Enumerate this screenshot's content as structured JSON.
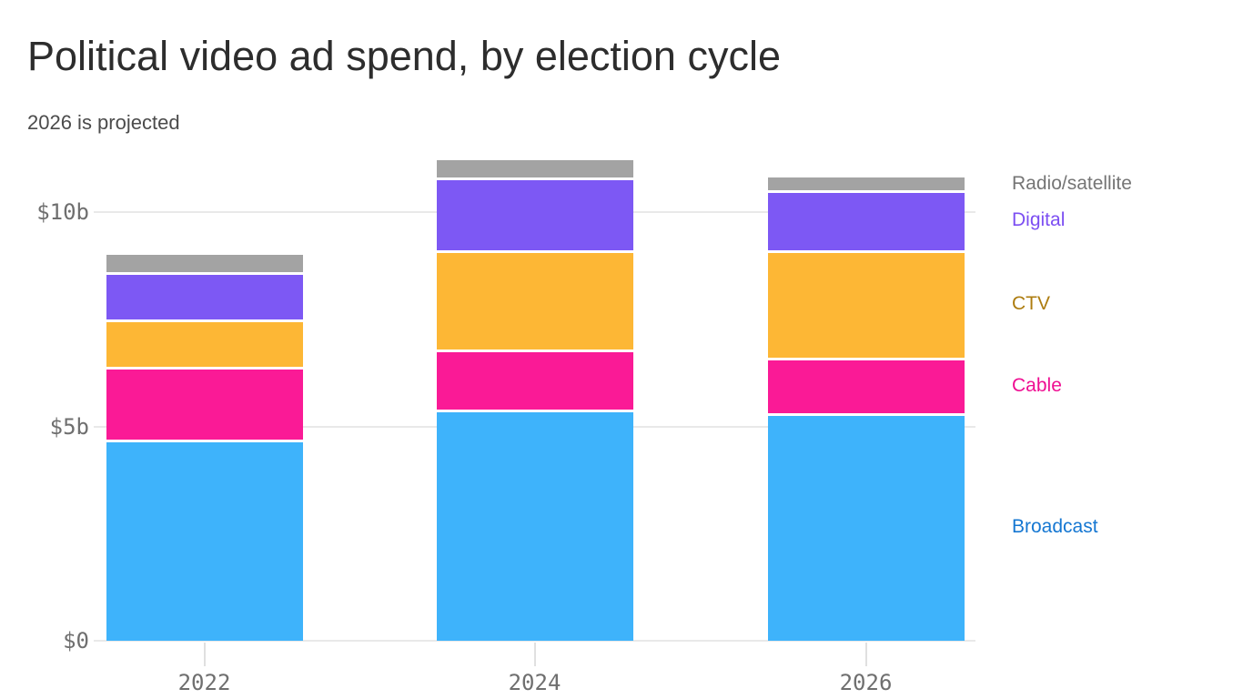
{
  "header": {
    "title": "Political video ad spend, by election cycle",
    "subtitle": "2026 is projected"
  },
  "chart_data": {
    "type": "bar",
    "stacked": true,
    "title": "Political video ad spend, by election cycle",
    "subtitle": "2026 is projected",
    "categories": [
      "2022",
      "2024",
      "2026"
    ],
    "value_unit": "billions USD",
    "series": [
      {
        "name": "Broadcast",
        "values": [
          4.7,
          5.4,
          5.3
        ],
        "bar_color": "#3eb3fb",
        "label_color": "#1577d2"
      },
      {
        "name": "Cable",
        "values": [
          1.7,
          1.4,
          1.3
        ],
        "bar_color": "#fa1a96",
        "label_color": "#ef0e92"
      },
      {
        "name": "CTV",
        "values": [
          1.1,
          2.3,
          2.5
        ],
        "bar_color": "#fdb735",
        "label_color": "#ad7c0f"
      },
      {
        "name": "Digital",
        "values": [
          1.1,
          1.7,
          1.4
        ],
        "bar_color": "#7d58f4",
        "label_color": "#7c4ef2"
      },
      {
        "name": "Radio/satellite",
        "values": [
          0.4,
          0.4,
          0.3
        ],
        "bar_color": "#a3a3a3",
        "label_color": "#757575"
      }
    ],
    "totals": [
      9.0,
      11.2,
      10.8
    ],
    "y_axis": {
      "ticks": [
        {
          "label": "$0",
          "value": 0
        },
        {
          "label": "$5b",
          "value": 5
        },
        {
          "label": "$10b",
          "value": 10
        }
      ],
      "range": [
        0,
        11.5
      ],
      "gridlines": true
    },
    "legend": {
      "position": "right",
      "order_top_to_bottom": [
        "Radio/satellite",
        "Digital",
        "CTV",
        "Cable",
        "Broadcast"
      ]
    }
  },
  "colors": {
    "background": "#ffffff",
    "gridline": "#e9e9e9",
    "axis_text": "#6f6f6f",
    "title_text": "#2d2d2d",
    "subtitle_text": "#4b4b4b",
    "segment_gap": "#ffffff"
  }
}
